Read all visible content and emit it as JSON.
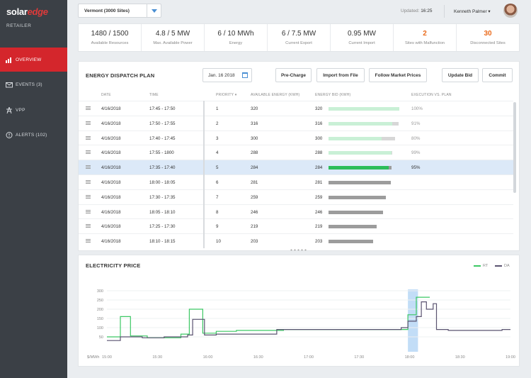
{
  "brand": {
    "name_a": "solar",
    "name_b": "edge",
    "subtitle": "RETAILER"
  },
  "nav": [
    {
      "label": "OVERVIEW",
      "active": true,
      "icon": "bar-chart-icon"
    },
    {
      "label": "EVENTS (3)",
      "active": false,
      "icon": "envelope-icon"
    },
    {
      "label": "VPP",
      "active": false,
      "icon": "power-tower-icon"
    },
    {
      "label": "ALERTS (102)",
      "active": false,
      "icon": "alert-icon"
    }
  ],
  "header": {
    "site_selector": "Vermont (3000 Sites)",
    "updated_label": "Updated: ",
    "updated_time": "16:25",
    "user_name": "Kenneth Palmer ▾"
  },
  "kpis": [
    {
      "value": "1480 / 1500",
      "label": "Available Resources",
      "highlight": false
    },
    {
      "value": "4.8 / 5 MW",
      "label": "Max. Available Power",
      "highlight": false
    },
    {
      "value": "6 / 10 MWh",
      "label": "Energy",
      "highlight": false
    },
    {
      "value": "6 / 7.5 MW",
      "label": "Current Export",
      "highlight": false
    },
    {
      "value": "0.95 MW",
      "label": "Current Import",
      "highlight": false
    },
    {
      "value": "2",
      "label": "Sites with Malfunction",
      "highlight": true
    },
    {
      "value": "30",
      "label": "Disconnected Sites",
      "highlight": true
    }
  ],
  "dispatch": {
    "title": "ENERGY DISPATCH PLAN",
    "date": "Jan. 16 2018",
    "buttons": {
      "precharge": "Pre-Charge",
      "import": "Import from File",
      "follow": "Follow Market Prices",
      "update": "Update Bid",
      "commit": "Commit"
    },
    "columns": {
      "date": "DATE",
      "time": "TIME",
      "priority": "PRIORITY ▾",
      "available": "AVAILABLE ENERGY (KWH)",
      "bid": "ENERGY BID (KWH)",
      "execution": "EXECUTION VS. PLAN"
    },
    "rows": [
      {
        "date": "4/16/2018",
        "time": "17:45 - 17:50",
        "priority": "1",
        "available": "320",
        "bid": "320",
        "execution": "100%",
        "executed_fraction": 1.0,
        "selected": false
      },
      {
        "date": "4/16/2018",
        "time": "17:50 - 17:55",
        "priority": "2",
        "available": "316",
        "bid": "316",
        "execution": "91%",
        "executed_fraction": 0.91,
        "selected": false
      },
      {
        "date": "4/16/2018",
        "time": "17:40 - 17:45",
        "priority": "3",
        "available": "300",
        "bid": "300",
        "execution": "80%",
        "executed_fraction": 0.8,
        "selected": false
      },
      {
        "date": "4/16/2018",
        "time": "17:55 - 1800",
        "priority": "4",
        "available": "288",
        "bid": "288",
        "execution": "99%",
        "executed_fraction": 0.99,
        "selected": false
      },
      {
        "date": "4/16/2018",
        "time": "17:35 - 17:40",
        "priority": "5",
        "available": "284",
        "bid": "284",
        "execution": "95%",
        "executed_fraction": 0.95,
        "selected": true
      },
      {
        "date": "4/16/2018",
        "time": "18:00 - 18:05",
        "priority": "6",
        "available": "281",
        "bid": "281",
        "execution": "",
        "executed_fraction": 0,
        "selected": false
      },
      {
        "date": "4/16/2018",
        "time": "17:30 - 17:35",
        "priority": "7",
        "available": "259",
        "bid": "259",
        "execution": "",
        "executed_fraction": 0,
        "selected": false
      },
      {
        "date": "4/16/2018",
        "time": "18:05 - 18:10",
        "priority": "8",
        "available": "246",
        "bid": "246",
        "execution": "",
        "executed_fraction": 0,
        "selected": false
      },
      {
        "date": "4/16/2018",
        "time": "17:25 - 17:30",
        "priority": "9",
        "available": "219",
        "bid": "219",
        "execution": "",
        "executed_fraction": 0,
        "selected": false
      },
      {
        "date": "4/16/2018",
        "time": "18:10 - 18:15",
        "priority": "10",
        "available": "203",
        "bid": "203",
        "execution": "",
        "executed_fraction": 0,
        "selected": false
      }
    ]
  },
  "colors": {
    "accent_red": "#d4262c",
    "rt_green": "#3cc864",
    "da_purple": "#5a5370",
    "kpi_orange": "#ea6b1c",
    "bar_plan_green": "#c9f0d6",
    "bar_active_green": "#2dbd5a",
    "bar_grey": "#9c9c9c",
    "highlight_blue": "#b3d4f5"
  },
  "price_chart": {
    "title": "ELECTRICITY PRICE",
    "ylabel": "$/MWh",
    "legend_rt": "RT",
    "legend_da": "DA"
  },
  "chart_data": {
    "type": "line",
    "title": "ELECTRICITY PRICE",
    "ylabel": "$/MWh",
    "xlabel": "",
    "ylim": [
      0,
      300
    ],
    "yticks": [
      50,
      100,
      150,
      200,
      250,
      300
    ],
    "xticks": [
      "15:00",
      "15:30",
      "16:00",
      "16:30",
      "17:00",
      "17:30",
      "18:00",
      "18:30",
      "19:00"
    ],
    "x_range_minutes": [
      900,
      1140
    ],
    "highlight_range": [
      "17:59",
      "18:05"
    ],
    "series": [
      {
        "name": "RT",
        "color": "#3cc864",
        "x": [
          "15:00",
          "15:08",
          "15:08",
          "15:14",
          "15:14",
          "15:24",
          "15:24",
          "15:44",
          "15:44",
          "15:49",
          "15:49",
          "15:57",
          "15:57",
          "16:05",
          "16:05",
          "16:17",
          "16:17",
          "16:45",
          "16:45",
          "17:59",
          "17:59",
          "18:04",
          "18:04",
          "18:12",
          "18:12"
        ],
        "y": [
          50,
          50,
          160,
          160,
          55,
          55,
          45,
          45,
          65,
          65,
          200,
          200,
          70,
          70,
          80,
          80,
          85,
          85,
          90,
          90,
          170,
          170,
          265,
          265,
          265
        ]
      },
      {
        "name": "DA",
        "color": "#5a5370",
        "x": [
          "15:00",
          "15:08",
          "15:08",
          "15:21",
          "15:21",
          "15:34",
          "15:34",
          "15:48",
          "15:48",
          "15:51",
          "15:51",
          "15:58",
          "15:58",
          "16:05",
          "16:05",
          "16:41",
          "16:41",
          "17:55",
          "17:55",
          "17:59",
          "17:59",
          "18:04",
          "18:04",
          "18:07",
          "18:07",
          "18:10",
          "18:10",
          "18:14",
          "18:14",
          "18:16",
          "18:16",
          "18:23",
          "18:23",
          "18:55",
          "18:55",
          "19:00"
        ],
        "y": [
          30,
          30,
          50,
          50,
          45,
          45,
          50,
          50,
          60,
          60,
          145,
          145,
          60,
          60,
          65,
          65,
          90,
          90,
          100,
          100,
          135,
          135,
          160,
          160,
          240,
          240,
          200,
          200,
          230,
          230,
          90,
          90,
          85,
          85,
          90,
          90
        ]
      }
    ]
  }
}
